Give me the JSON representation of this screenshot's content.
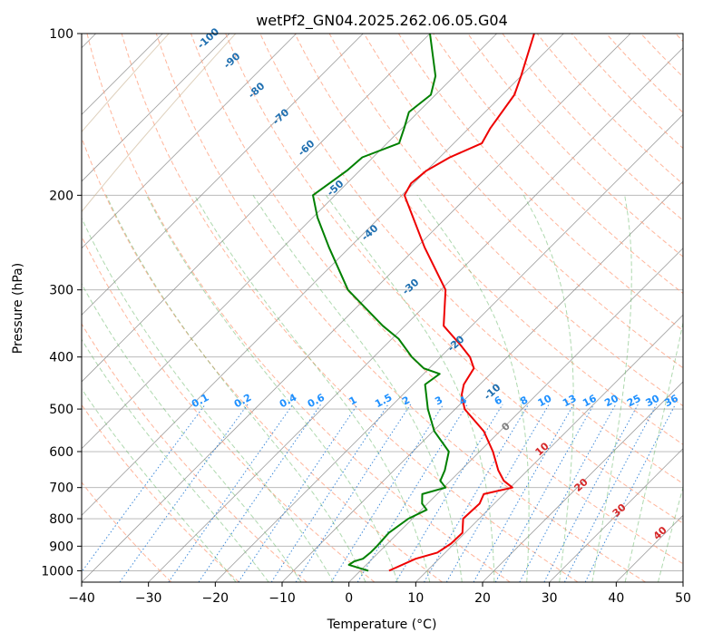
{
  "chart_data": {
    "type": "skew-t",
    "title": "wetPf2_GN04.2025.262.06.05.G04",
    "xlabel": "Temperature (°C)",
    "ylabel": "Pressure (hPa)",
    "xlim": [
      -40,
      50
    ],
    "ylim": [
      1050,
      100
    ],
    "x_ticks": [
      -40,
      -30,
      -20,
      -10,
      0,
      10,
      20,
      30,
      40,
      50
    ],
    "x_tick_labels": [
      "−40",
      "−30",
      "−20",
      "−10",
      "0",
      "10",
      "20",
      "30",
      "40",
      "50"
    ],
    "y_ticks": [
      100,
      200,
      300,
      400,
      500,
      600,
      700,
      800,
      900,
      1000
    ],
    "y_tick_labels": [
      "100",
      "200",
      "300",
      "400",
      "500",
      "600",
      "700",
      "800",
      "900",
      "1000"
    ],
    "grid": true,
    "temperature_profile": {
      "name": "Temperature",
      "color": "#ee0000",
      "points": [
        [
          1000,
          4.3
        ],
        [
          950,
          6.5
        ],
        [
          925,
          8.8
        ],
        [
          890,
          9.5
        ],
        [
          850,
          9.6
        ],
        [
          800,
          7.6
        ],
        [
          750,
          7.8
        ],
        [
          720,
          7.0
        ],
        [
          700,
          10.3
        ],
        [
          680,
          8.0
        ],
        [
          650,
          5.6
        ],
        [
          600,
          2.0
        ],
        [
          550,
          -2.4
        ],
        [
          500,
          -8.6
        ],
        [
          470,
          -11.2
        ],
        [
          450,
          -12.4
        ],
        [
          420,
          -13.3
        ],
        [
          400,
          -15.6
        ],
        [
          380,
          -18.8
        ],
        [
          350,
          -24.2
        ],
        [
          300,
          -29.3
        ],
        [
          250,
          -38.8
        ],
        [
          200,
          -49.6
        ],
        [
          190,
          -50.4
        ],
        [
          180,
          -50.0
        ],
        [
          170,
          -48.5
        ],
        [
          160,
          -45.8
        ],
        [
          150,
          -46.8
        ],
        [
          130,
          -48.2
        ],
        [
          120,
          -50.0
        ],
        [
          100,
          -54.4
        ]
      ]
    },
    "dewpoint_profile": {
      "name": "Dewpoint",
      "color": "#008000",
      "points": [
        [
          1000,
          1.2
        ],
        [
          975,
          -2.6
        ],
        [
          960,
          -2.3
        ],
        [
          950,
          -1.4
        ],
        [
          925,
          -1.2
        ],
        [
          900,
          -1.2
        ],
        [
          850,
          -1.4
        ],
        [
          800,
          -0.6
        ],
        [
          770,
          0.8
        ],
        [
          750,
          -0.8
        ],
        [
          720,
          -2.2
        ],
        [
          700,
          0.3
        ],
        [
          680,
          -1.5
        ],
        [
          650,
          -2.4
        ],
        [
          600,
          -4.6
        ],
        [
          550,
          -9.8
        ],
        [
          500,
          -14.1
        ],
        [
          450,
          -18.2
        ],
        [
          430,
          -17.6
        ],
        [
          420,
          -20.8
        ],
        [
          400,
          -24.3
        ],
        [
          370,
          -29.0
        ],
        [
          350,
          -33.3
        ],
        [
          300,
          -43.9
        ],
        [
          250,
          -53.1
        ],
        [
          220,
          -59.3
        ],
        [
          200,
          -63.3
        ],
        [
          180,
          -61.9
        ],
        [
          170,
          -61.6
        ],
        [
          160,
          -58.2
        ],
        [
          150,
          -59.7
        ],
        [
          140,
          -61.4
        ],
        [
          130,
          -60.7
        ],
        [
          120,
          -62.8
        ],
        [
          100,
          -70.0
        ]
      ]
    },
    "dry_adiabat_labels": [
      "-100",
      "-90",
      "-80",
      "-70",
      "-60",
      "-50",
      "-40",
      "-30",
      "-20",
      "-10"
    ],
    "mixing_ratio_labels": [
      "0.1",
      "0.2",
      "0.4",
      "0.6",
      "1",
      "1.5",
      "2",
      "3",
      "4",
      "6",
      "8",
      "10",
      "13",
      "16",
      "20",
      "25",
      "30",
      "36"
    ],
    "moist_adiabat_labels": [
      "0",
      "10",
      "20",
      "30",
      "40"
    ],
    "colors": {
      "isobar_grid": "#b0b0b0",
      "isotherm": "#8c8c8c",
      "dry_adiabat": "#ff9c7a",
      "moist_adiabat": "#5fb45f",
      "mixing_ratio": "#1f77d4",
      "dry_label": "#1f6fb0",
      "mix_label": "#1e90ff",
      "moist_label_warm": "#d62728",
      "moist_label_zero": "#7f7f7f",
      "brown_arc": "#c8b090"
    }
  }
}
